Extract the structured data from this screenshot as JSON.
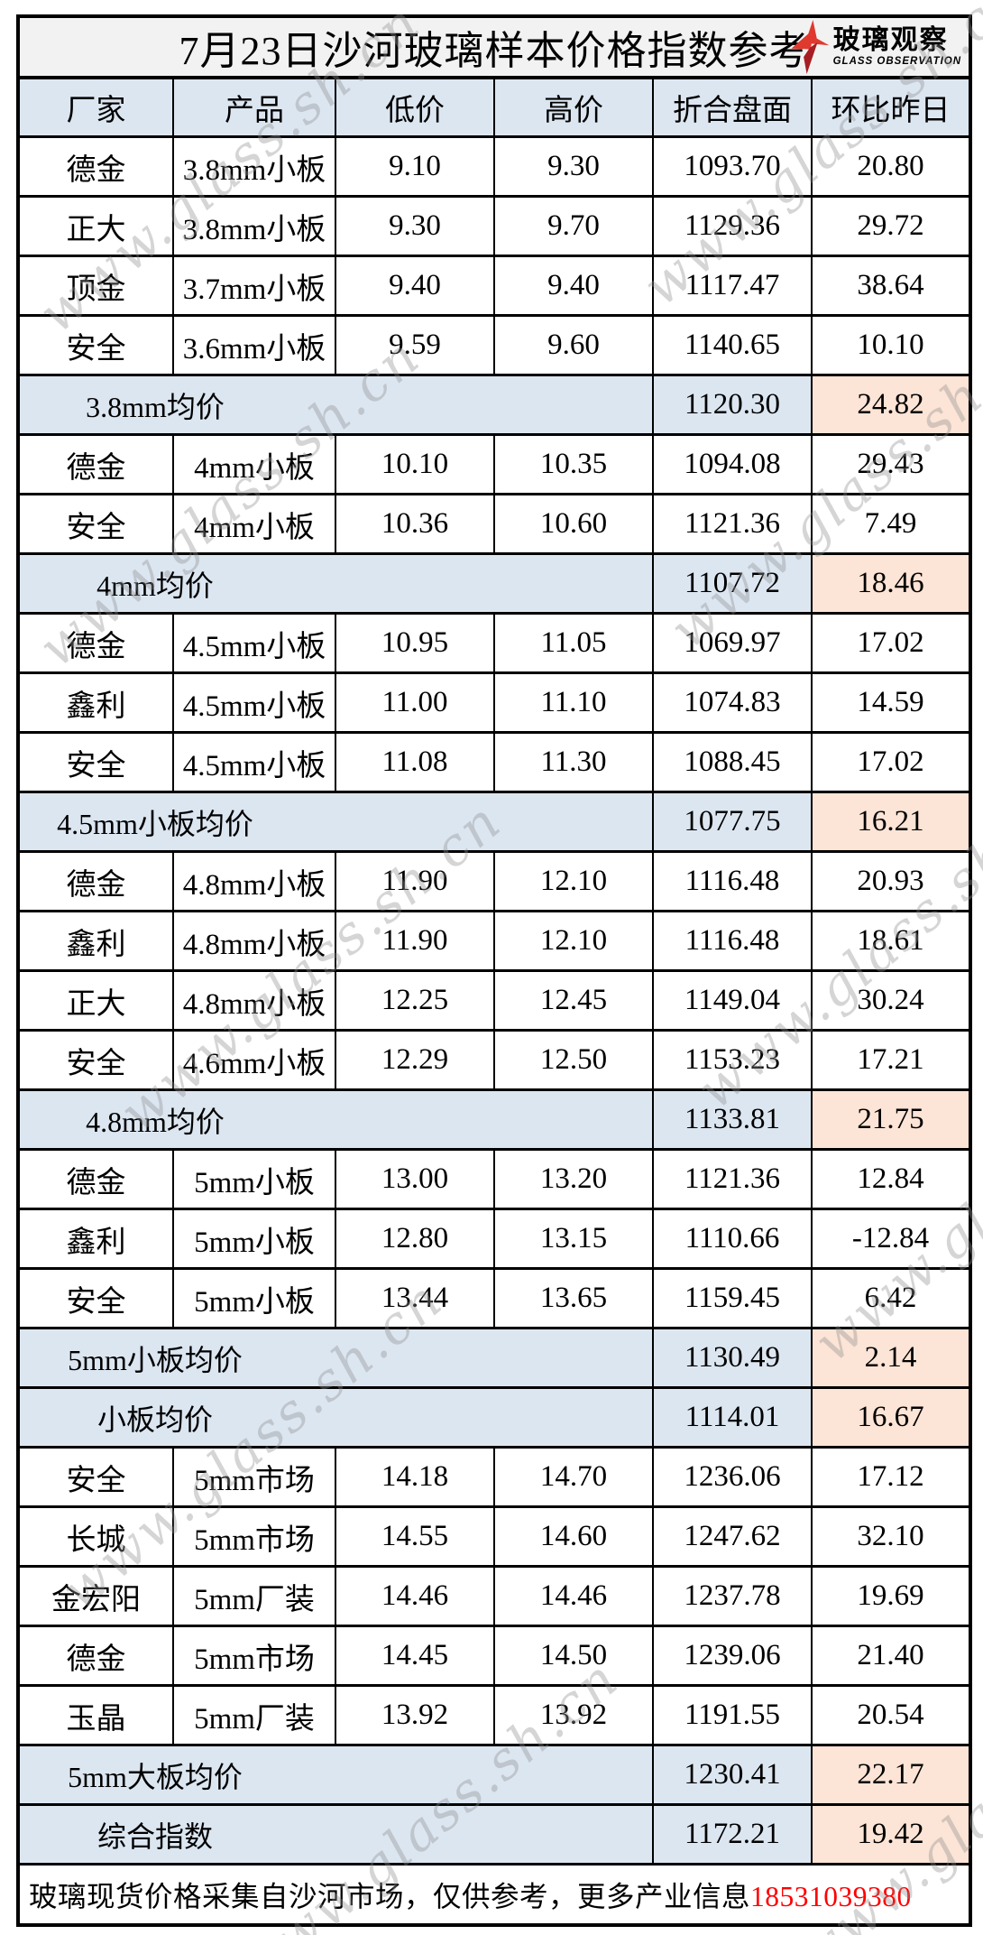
{
  "title": "7月23日沙河玻璃样本价格指数参考",
  "logo": {
    "name_cn": "玻璃观察",
    "name_en": "GLASS OBSERVATION",
    "star_color": "#e0392f",
    "star_color_dark": "#a81d22"
  },
  "watermark": {
    "text": "www.glass.sh.cn"
  },
  "colors": {
    "header_bg": "#dce6f1",
    "summary_bg": "#dce6f1",
    "change_up_bg": "#fce4d6",
    "change_down_bg": "#e2efda",
    "title_bg": "#f2f2f2",
    "phone_red": "#ff0000"
  },
  "table": {
    "columns": [
      "厂家",
      "产品",
      "低价",
      "高价",
      "折合盘面",
      "环比昨日"
    ],
    "rows": [
      {
        "type": "data",
        "factory": "德金",
        "product": "3.8mm小板",
        "low": "9.10",
        "high": "9.30",
        "pan": "1093.70",
        "change": "20.80"
      },
      {
        "type": "data",
        "factory": "正大",
        "product": "3.8mm小板",
        "low": "9.30",
        "high": "9.70",
        "pan": "1129.36",
        "change": "29.72"
      },
      {
        "type": "data",
        "factory": "顶金",
        "product": "3.7mm小板",
        "low": "9.40",
        "high": "9.40",
        "pan": "1117.47",
        "change": "38.64"
      },
      {
        "type": "data",
        "factory": "安全",
        "product": "3.6mm小板",
        "low": "9.59",
        "high": "9.60",
        "pan": "1140.65",
        "change": "10.10"
      },
      {
        "type": "summary",
        "label": "3.8mm均价",
        "pan": "1120.30",
        "change": "24.82"
      },
      {
        "type": "data",
        "factory": "德金",
        "product": "4mm小板",
        "low": "10.10",
        "high": "10.35",
        "pan": "1094.08",
        "change": "29.43"
      },
      {
        "type": "data",
        "factory": "安全",
        "product": "4mm小板",
        "low": "10.36",
        "high": "10.60",
        "pan": "1121.36",
        "change": "7.49"
      },
      {
        "type": "summary",
        "label": "4mm均价",
        "pan": "1107.72",
        "change": "18.46"
      },
      {
        "type": "data",
        "factory": "德金",
        "product": "4.5mm小板",
        "low": "10.95",
        "high": "11.05",
        "pan": "1069.97",
        "change": "17.02"
      },
      {
        "type": "data",
        "factory": "鑫利",
        "product": "4.5mm小板",
        "low": "11.00",
        "high": "11.10",
        "pan": "1074.83",
        "change": "14.59"
      },
      {
        "type": "data",
        "factory": "安全",
        "product": "4.5mm小板",
        "low": "11.08",
        "high": "11.30",
        "pan": "1088.45",
        "change": "17.02"
      },
      {
        "type": "summary",
        "label": "4.5mm小板均价",
        "pan": "1077.75",
        "change": "16.21"
      },
      {
        "type": "data",
        "factory": "德金",
        "product": "4.8mm小板",
        "low": "11.90",
        "high": "12.10",
        "pan": "1116.48",
        "change": "20.93"
      },
      {
        "type": "data",
        "factory": "鑫利",
        "product": "4.8mm小板",
        "low": "11.90",
        "high": "12.10",
        "pan": "1116.48",
        "change": "18.61"
      },
      {
        "type": "data",
        "factory": "正大",
        "product": "4.8mm小板",
        "low": "12.25",
        "high": "12.45",
        "pan": "1149.04",
        "change": "30.24"
      },
      {
        "type": "data",
        "factory": "安全",
        "product": "4.6mm小板",
        "low": "12.29",
        "high": "12.50",
        "pan": "1153.23",
        "change": "17.21"
      },
      {
        "type": "summary",
        "label": "4.8mm均价",
        "pan": "1133.81",
        "change": "21.75"
      },
      {
        "type": "data",
        "factory": "德金",
        "product": "5mm小板",
        "low": "13.00",
        "high": "13.20",
        "pan": "1121.36",
        "change": "12.84"
      },
      {
        "type": "data",
        "factory": "鑫利",
        "product": "5mm小板",
        "low": "12.80",
        "high": "13.15",
        "pan": "1110.66",
        "change": "-12.84"
      },
      {
        "type": "data",
        "factory": "安全",
        "product": "5mm小板",
        "low": "13.44",
        "high": "13.65",
        "pan": "1159.45",
        "change": "6.42"
      },
      {
        "type": "summary",
        "label": "5mm小板均价",
        "pan": "1130.49",
        "change": "2.14"
      },
      {
        "type": "summary",
        "label": "小板均价",
        "pan": "1114.01",
        "change": "16.67"
      },
      {
        "type": "data",
        "factory": "安全",
        "product": "5mm市场",
        "low": "14.18",
        "high": "14.70",
        "pan": "1236.06",
        "change": "17.12"
      },
      {
        "type": "data",
        "factory": "长城",
        "product": "5mm市场",
        "low": "14.55",
        "high": "14.60",
        "pan": "1247.62",
        "change": "32.10"
      },
      {
        "type": "data",
        "factory": "金宏阳",
        "product": "5mm厂装",
        "low": "14.46",
        "high": "14.46",
        "pan": "1237.78",
        "change": "19.69"
      },
      {
        "type": "data",
        "factory": "德金",
        "product": "5mm市场",
        "low": "14.45",
        "high": "14.50",
        "pan": "1239.06",
        "change": "21.40"
      },
      {
        "type": "data",
        "factory": "玉晶",
        "product": "5mm厂装",
        "low": "13.92",
        "high": "13.92",
        "pan": "1191.55",
        "change": "20.54"
      },
      {
        "type": "summary",
        "label": "5mm大板均价",
        "pan": "1230.41",
        "change": "22.17"
      },
      {
        "type": "summary",
        "label": "综合指数",
        "pan": "1172.21",
        "change": "19.42"
      }
    ]
  },
  "footer": {
    "text": "玻璃现货价格采集自沙河市场，仅供参考，更多产业信息",
    "phone": "18531039380"
  }
}
